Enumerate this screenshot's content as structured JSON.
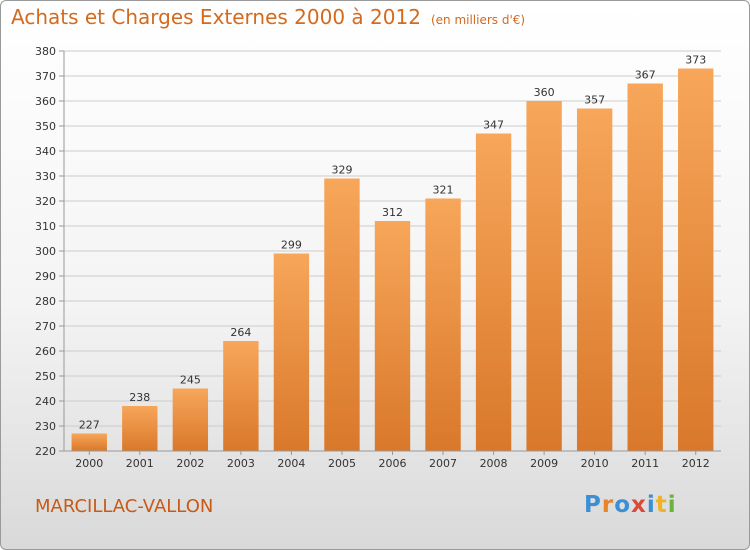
{
  "header": {
    "title": "Achats et Charges Externes 2000 à 2012",
    "unit": "(en milliers d'€)"
  },
  "footer": {
    "commune": "MARCILLAC-VALLON"
  },
  "logo": {
    "text": "Proxiti",
    "colors": [
      "#3a8fd6",
      "#e8842a",
      "#3a8fd6",
      "#d94a3b",
      "#3a8fd6",
      "#f0b323",
      "#6bb33d"
    ]
  },
  "chart_data": {
    "type": "bar",
    "categories": [
      "2000",
      "2001",
      "2002",
      "2003",
      "2004",
      "2005",
      "2006",
      "2007",
      "2008",
      "2009",
      "2010",
      "2011",
      "2012"
    ],
    "values": [
      227,
      238,
      245,
      264,
      299,
      329,
      312,
      321,
      347,
      360,
      357,
      367,
      373
    ],
    "ylim": [
      220,
      380
    ],
    "yticks": [
      220,
      230,
      240,
      250,
      260,
      270,
      280,
      290,
      300,
      310,
      320,
      330,
      340,
      350,
      360,
      370,
      380
    ],
    "grid": true,
    "colors": {
      "bar_light": "#f7a65a",
      "bar_dark": "#d9782a",
      "grid": "#cccccc",
      "axis": "#999999"
    }
  }
}
